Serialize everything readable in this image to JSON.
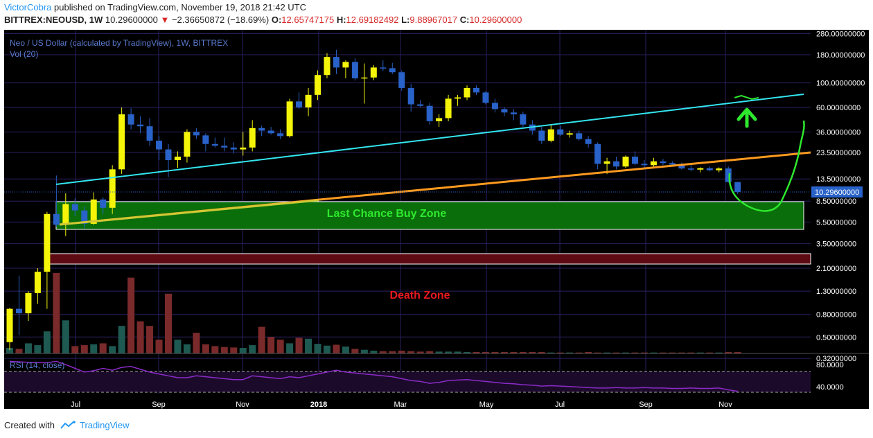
{
  "header": {
    "author": "VictorCobra",
    "published_text": "published on TradingView.com, November 19, 2018 21:42 UTC",
    "symbol": "BITTREX:NEOUSD, 1W",
    "last_price": "10.29600000",
    "change_arrow": "▼",
    "change": "−2.36650872 (−18.69%)",
    "open_label": "O:",
    "open": "12.65747175",
    "high_label": "H:",
    "high": "12.69182492",
    "low_label": "L:",
    "low": "9.88967017",
    "close_label": "C:",
    "close": "10.29600000"
  },
  "footer": {
    "created_with": "Created with",
    "brand": "TradingView"
  },
  "colors": {
    "background": "#000000",
    "bull_candle": "#f5f50a",
    "bear_candle": "#2962c8",
    "grid": "#2a2060",
    "axis_text": "#ffffff",
    "price_tag": "#2962c8",
    "cyan_line": "#33e6f0",
    "orange_line": "#ff9a1f",
    "green_zone": "#0a6e0a",
    "red_zone": "#5e0a12",
    "rsi_line": "#8a2bc9",
    "annotation_green": "#2ee82e"
  },
  "chart_data": {
    "type": "candlestick",
    "title": "Neo / US Dollar (calculated by TradingView), 1W, BITTREX",
    "volume_label": "Vol (20)",
    "rsi_label": "RSI (14, close)",
    "y_scale": "log",
    "ylim": [
      0.23,
      290
    ],
    "y_ticks": [
      "280.00000000",
      "180.00000000",
      "100.00000000",
      "60.00000000",
      "36.00000000",
      "23.50000000",
      "13.50000000",
      "8.50000000",
      "5.50000000",
      "3.50000000",
      "2.10000000",
      "1.30000000",
      "0.80000000",
      "0.50000000",
      "0.32000000"
    ],
    "current_price_label": "10.29600000",
    "x_ticks": [
      "Jul",
      "Sep",
      "Nov",
      "2018",
      "Mar",
      "May",
      "Jul",
      "Sep",
      "Nov"
    ],
    "rsi_ticks": [
      "80.0000",
      "40.0000"
    ],
    "annotations": {
      "buy_zone": "Last Chance Buy Zone",
      "death_zone": "Death Zone"
    },
    "candles": [
      {
        "o": 0.45,
        "h": 0.92,
        "l": 0.38,
        "c": 0.9
      },
      {
        "o": 0.9,
        "h": 1.8,
        "l": 0.52,
        "c": 0.82
      },
      {
        "o": 0.82,
        "h": 1.3,
        "l": 0.7,
        "c": 1.25
      },
      {
        "o": 1.25,
        "h": 2.1,
        "l": 1.0,
        "c": 1.95
      },
      {
        "o": 1.95,
        "h": 6.8,
        "l": 0.9,
        "c": 6.5
      },
      {
        "o": 6.5,
        "h": 14.5,
        "l": 5.0,
        "c": 5.2
      },
      {
        "o": 5.2,
        "h": 10.0,
        "l": 4.1,
        "c": 8.0
      },
      {
        "o": 8.0,
        "h": 9.0,
        "l": 6.2,
        "c": 7.0
      },
      {
        "o": 7.0,
        "h": 7.6,
        "l": 4.8,
        "c": 5.3
      },
      {
        "o": 5.3,
        "h": 10.2,
        "l": 5.2,
        "c": 8.8
      },
      {
        "o": 8.8,
        "h": 9.2,
        "l": 6.5,
        "c": 7.4
      },
      {
        "o": 7.4,
        "h": 18.0,
        "l": 6.5,
        "c": 16.5
      },
      {
        "o": 16.5,
        "h": 60.0,
        "l": 15.0,
        "c": 52.0
      },
      {
        "o": 52.0,
        "h": 59.0,
        "l": 38.0,
        "c": 42.0
      },
      {
        "o": 42.0,
        "h": 50.0,
        "l": 35.0,
        "c": 40.5
      },
      {
        "o": 40.5,
        "h": 48.0,
        "l": 27.0,
        "c": 30.0
      },
      {
        "o": 30.0,
        "h": 33.0,
        "l": 20.0,
        "c": 25.0
      },
      {
        "o": 25.0,
        "h": 28.0,
        "l": 14.0,
        "c": 20.0
      },
      {
        "o": 20.0,
        "h": 24.0,
        "l": 17.0,
        "c": 21.5
      },
      {
        "o": 21.5,
        "h": 38.0,
        "l": 19.0,
        "c": 36.0
      },
      {
        "o": 36.0,
        "h": 39.0,
        "l": 31.0,
        "c": 33.5
      },
      {
        "o": 33.5,
        "h": 35.0,
        "l": 24.0,
        "c": 28.0
      },
      {
        "o": 28.0,
        "h": 32.0,
        "l": 26.0,
        "c": 27.0
      },
      {
        "o": 27.0,
        "h": 32.0,
        "l": 24.0,
        "c": 26.0
      },
      {
        "o": 26.0,
        "h": 29.0,
        "l": 23.0,
        "c": 25.0
      },
      {
        "o": 25.0,
        "h": 36.0,
        "l": 22.0,
        "c": 26.0
      },
      {
        "o": 26.0,
        "h": 46.0,
        "l": 24.0,
        "c": 39.0
      },
      {
        "o": 39.0,
        "h": 41.0,
        "l": 33.0,
        "c": 37.0
      },
      {
        "o": 37.0,
        "h": 40.0,
        "l": 34.0,
        "c": 35.0
      },
      {
        "o": 35.0,
        "h": 38.0,
        "l": 31.0,
        "c": 33.0
      },
      {
        "o": 33.0,
        "h": 72.0,
        "l": 32.0,
        "c": 68.0
      },
      {
        "o": 68.0,
        "h": 82.0,
        "l": 58.0,
        "c": 60.0
      },
      {
        "o": 60.0,
        "h": 90.0,
        "l": 50.0,
        "c": 78.0
      },
      {
        "o": 78.0,
        "h": 130.0,
        "l": 70.0,
        "c": 118.0
      },
      {
        "o": 118.0,
        "h": 186.0,
        "l": 110.0,
        "c": 172.0
      },
      {
        "o": 172.0,
        "h": 200.0,
        "l": 120.0,
        "c": 138.0
      },
      {
        "o": 138.0,
        "h": 160.0,
        "l": 110.0,
        "c": 155.0
      },
      {
        "o": 155.0,
        "h": 168.0,
        "l": 105.0,
        "c": 110.0
      },
      {
        "o": 110.0,
        "h": 150.0,
        "l": 65.0,
        "c": 112.0
      },
      {
        "o": 112.0,
        "h": 145.0,
        "l": 106.0,
        "c": 138.0
      },
      {
        "o": 138.0,
        "h": 160.0,
        "l": 128.0,
        "c": 136.0
      },
      {
        "o": 136.0,
        "h": 152.0,
        "l": 120.0,
        "c": 125.0
      },
      {
        "o": 125.0,
        "h": 130.0,
        "l": 85.0,
        "c": 90.0
      },
      {
        "o": 90.0,
        "h": 98.0,
        "l": 55.0,
        "c": 64.0
      },
      {
        "o": 64.0,
        "h": 70.0,
        "l": 60.0,
        "c": 62.0
      },
      {
        "o": 62.0,
        "h": 66.0,
        "l": 42.0,
        "c": 45.0
      },
      {
        "o": 45.0,
        "h": 52.0,
        "l": 40.0,
        "c": 48.0
      },
      {
        "o": 48.0,
        "h": 78.0,
        "l": 45.0,
        "c": 72.0
      },
      {
        "o": 72.0,
        "h": 78.0,
        "l": 62.0,
        "c": 74.0
      },
      {
        "o": 74.0,
        "h": 95.0,
        "l": 70.0,
        "c": 90.0
      },
      {
        "o": 90.0,
        "h": 95.0,
        "l": 78.0,
        "c": 82.0
      },
      {
        "o": 82.0,
        "h": 84.0,
        "l": 64.0,
        "c": 66.0
      },
      {
        "o": 66.0,
        "h": 72.0,
        "l": 54.0,
        "c": 58.0
      },
      {
        "o": 58.0,
        "h": 60.0,
        "l": 50.0,
        "c": 54.0
      },
      {
        "o": 54.0,
        "h": 58.0,
        "l": 46.0,
        "c": 52.0
      },
      {
        "o": 52.0,
        "h": 55.0,
        "l": 40.0,
        "c": 42.0
      },
      {
        "o": 42.0,
        "h": 46.0,
        "l": 34.0,
        "c": 37.0
      },
      {
        "o": 37.0,
        "h": 40.0,
        "l": 28.0,
        "c": 30.0
      },
      {
        "o": 30.0,
        "h": 42.0,
        "l": 29.0,
        "c": 38.0
      },
      {
        "o": 38.0,
        "h": 41.0,
        "l": 33.0,
        "c": 34.0
      },
      {
        "o": 34.0,
        "h": 37.0,
        "l": 32.0,
        "c": 35.0
      },
      {
        "o": 35.0,
        "h": 37.0,
        "l": 30.0,
        "c": 31.0
      },
      {
        "o": 31.0,
        "h": 33.0,
        "l": 26.0,
        "c": 28.0
      },
      {
        "o": 28.0,
        "h": 29.0,
        "l": 16.5,
        "c": 18.5
      },
      {
        "o": 18.5,
        "h": 21.0,
        "l": 15.0,
        "c": 19.5
      },
      {
        "o": 19.5,
        "h": 21.5,
        "l": 16.5,
        "c": 17.5
      },
      {
        "o": 17.5,
        "h": 22.0,
        "l": 17.0,
        "c": 21.5
      },
      {
        "o": 21.5,
        "h": 24.0,
        "l": 18.0,
        "c": 18.5
      },
      {
        "o": 18.5,
        "h": 20.0,
        "l": 17.0,
        "c": 18.0
      },
      {
        "o": 18.0,
        "h": 21.0,
        "l": 17.2,
        "c": 19.5
      },
      {
        "o": 19.5,
        "h": 20.5,
        "l": 18.0,
        "c": 18.8
      },
      {
        "o": 18.8,
        "h": 19.5,
        "l": 17.5,
        "c": 18.2
      },
      {
        "o": 18.2,
        "h": 19.0,
        "l": 16.5,
        "c": 16.8
      },
      {
        "o": 16.8,
        "h": 18.5,
        "l": 15.8,
        "c": 16.4
      },
      {
        "o": 16.4,
        "h": 17.2,
        "l": 15.5,
        "c": 16.9
      },
      {
        "o": 16.9,
        "h": 17.5,
        "l": 15.8,
        "c": 16.2
      },
      {
        "o": 16.2,
        "h": 17.2,
        "l": 15.5,
        "c": 16.8
      },
      {
        "o": 16.8,
        "h": 17.5,
        "l": 12.5,
        "c": 12.66
      },
      {
        "o": 12.66,
        "h": 12.69,
        "l": 9.89,
        "c": 10.296
      }
    ],
    "volume": [
      0.12,
      0.1,
      0.22,
      0.18,
      0.48,
      1.75,
      0.72,
      0.16,
      0.18,
      0.2,
      0.22,
      0.16,
      0.6,
      1.65,
      0.7,
      0.6,
      0.3,
      1.3,
      0.3,
      0.2,
      0.45,
      0.2,
      0.16,
      0.14,
      0.13,
      0.12,
      0.18,
      0.58,
      0.36,
      0.3,
      0.22,
      0.34,
      0.32,
      0.21,
      0.17,
      0.19,
      0.15,
      0.1,
      0.08,
      0.06,
      0.05,
      0.05,
      0.06,
      0.05,
      0.04,
      0.05,
      0.04,
      0.04,
      0.04,
      0.03,
      0.03,
      0.03,
      0.03,
      0.03,
      0.03,
      0.03,
      0.03,
      0.03,
      0.02,
      0.02,
      0.02,
      0.02,
      0.03,
      0.02,
      0.02,
      0.02,
      0.02,
      0.02,
      0.02,
      0.02,
      0.02,
      0.02,
      0.02,
      0.02,
      0.02,
      0.02,
      0.02,
      0.03,
      0.03
    ],
    "rsi": [
      95,
      94,
      93,
      92,
      92,
      95,
      88,
      80,
      72,
      75,
      80,
      76,
      82,
      84,
      78,
      72,
      68,
      64,
      60,
      60,
      64,
      62,
      60,
      58,
      56,
      56,
      64,
      62,
      60,
      58,
      62,
      60,
      64,
      68,
      72,
      76,
      72,
      70,
      68,
      66,
      64,
      62,
      58,
      54,
      52,
      48,
      50,
      54,
      55,
      56,
      54,
      52,
      50,
      48,
      47,
      45,
      44,
      42,
      43,
      42,
      41,
      40,
      39,
      38,
      38,
      39,
      38,
      38,
      39,
      38,
      38,
      37,
      37,
      38,
      37,
      37,
      38,
      34,
      31
    ]
  }
}
